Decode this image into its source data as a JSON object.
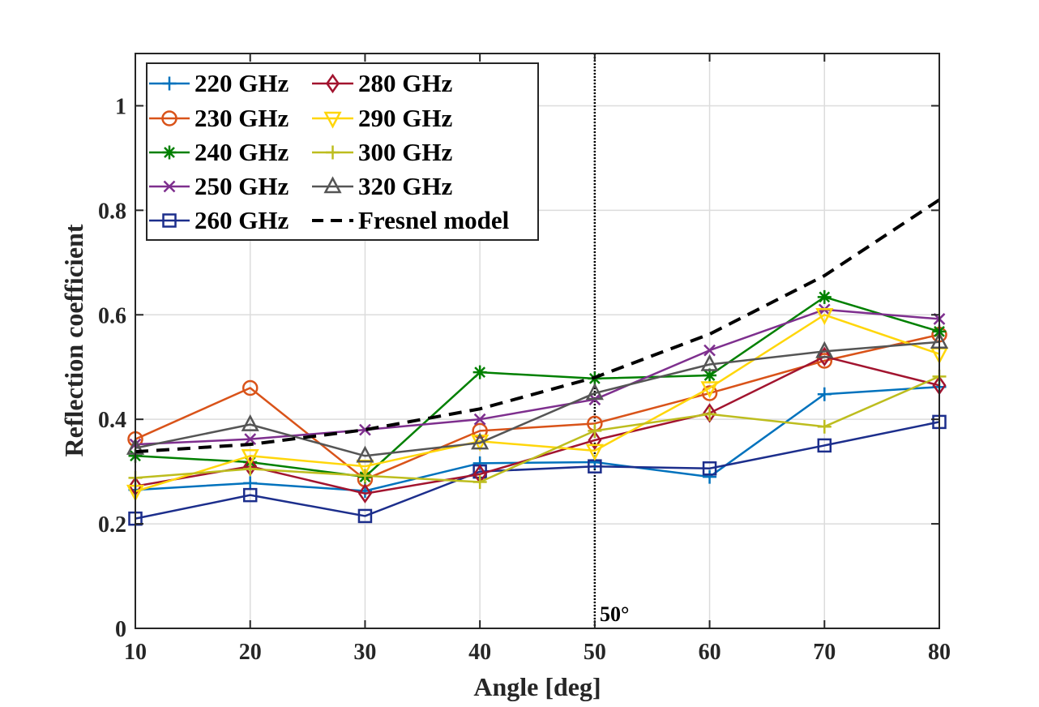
{
  "chart_data": {
    "type": "line",
    "title": "",
    "xlabel": "Angle [deg]",
    "ylabel": "Reflection coefficient",
    "xlim": [
      10,
      80
    ],
    "ylim": [
      0,
      1.1
    ],
    "xticks": [
      10,
      20,
      30,
      40,
      50,
      60,
      70,
      80
    ],
    "yticks": [
      0,
      0.2,
      0.4,
      0.6,
      0.8,
      1
    ],
    "xtick_labels": [
      "10",
      "20",
      "30",
      "40",
      "50",
      "60",
      "70",
      "80"
    ],
    "ytick_labels": [
      "0",
      "0.2",
      "0.4",
      "0.6",
      "0.8",
      "1"
    ],
    "grid": true,
    "legend_position": "top-left",
    "x": [
      10,
      20,
      30,
      40,
      50,
      60,
      70,
      80
    ],
    "series": [
      {
        "name": "220 GHz",
        "color": "#0072bd",
        "marker": "plus",
        "values": [
          0.265,
          0.278,
          0.263,
          0.316,
          0.318,
          0.29,
          0.448,
          0.462
        ]
      },
      {
        "name": "230 GHz",
        "color": "#d95319",
        "marker": "circle",
        "values": [
          0.362,
          0.46,
          0.285,
          0.378,
          0.392,
          0.45,
          0.512,
          0.562
        ]
      },
      {
        "name": "240 GHz",
        "color": "#008000",
        "marker": "asterisk",
        "values": [
          0.33,
          0.318,
          0.29,
          0.49,
          0.478,
          0.484,
          0.634,
          0.568
        ]
      },
      {
        "name": "250 GHz",
        "color": "#7e2f8e",
        "marker": "x",
        "values": [
          0.352,
          0.362,
          0.38,
          0.4,
          0.438,
          0.532,
          0.61,
          0.592
        ]
      },
      {
        "name": "260 GHz",
        "color": "#1c2e8c",
        "marker": "square",
        "values": [
          0.21,
          0.255,
          0.215,
          0.3,
          0.31,
          0.306,
          0.35,
          0.395
        ]
      },
      {
        "name": "280 GHz",
        "color": "#a2142f",
        "marker": "diamond",
        "values": [
          0.272,
          0.31,
          0.258,
          0.295,
          0.36,
          0.412,
          0.52,
          0.465
        ]
      },
      {
        "name": "290 GHz",
        "color": "#ffd60a",
        "marker": "triangle-down",
        "values": [
          0.262,
          0.33,
          0.31,
          0.358,
          0.34,
          0.46,
          0.6,
          0.525
        ]
      },
      {
        "name": "300 GHz",
        "color": "#bdbd1e",
        "marker": "plus",
        "values": [
          0.288,
          0.305,
          0.292,
          0.28,
          0.378,
          0.41,
          0.386,
          0.482
        ]
      },
      {
        "name": "320 GHz",
        "color": "#555555",
        "marker": "triangle-up",
        "values": [
          0.345,
          0.39,
          0.33,
          0.355,
          0.45,
          0.505,
          0.53,
          0.548
        ]
      },
      {
        "name": "Fresnel model",
        "color": "#000000",
        "marker": "none",
        "dash": "dashed",
        "values": [
          0.338,
          0.352,
          0.38,
          0.42,
          0.48,
          0.563,
          0.675,
          0.82
        ]
      }
    ],
    "annotations": [
      {
        "type": "vline",
        "x": 50,
        "label": "50°"
      }
    ]
  }
}
